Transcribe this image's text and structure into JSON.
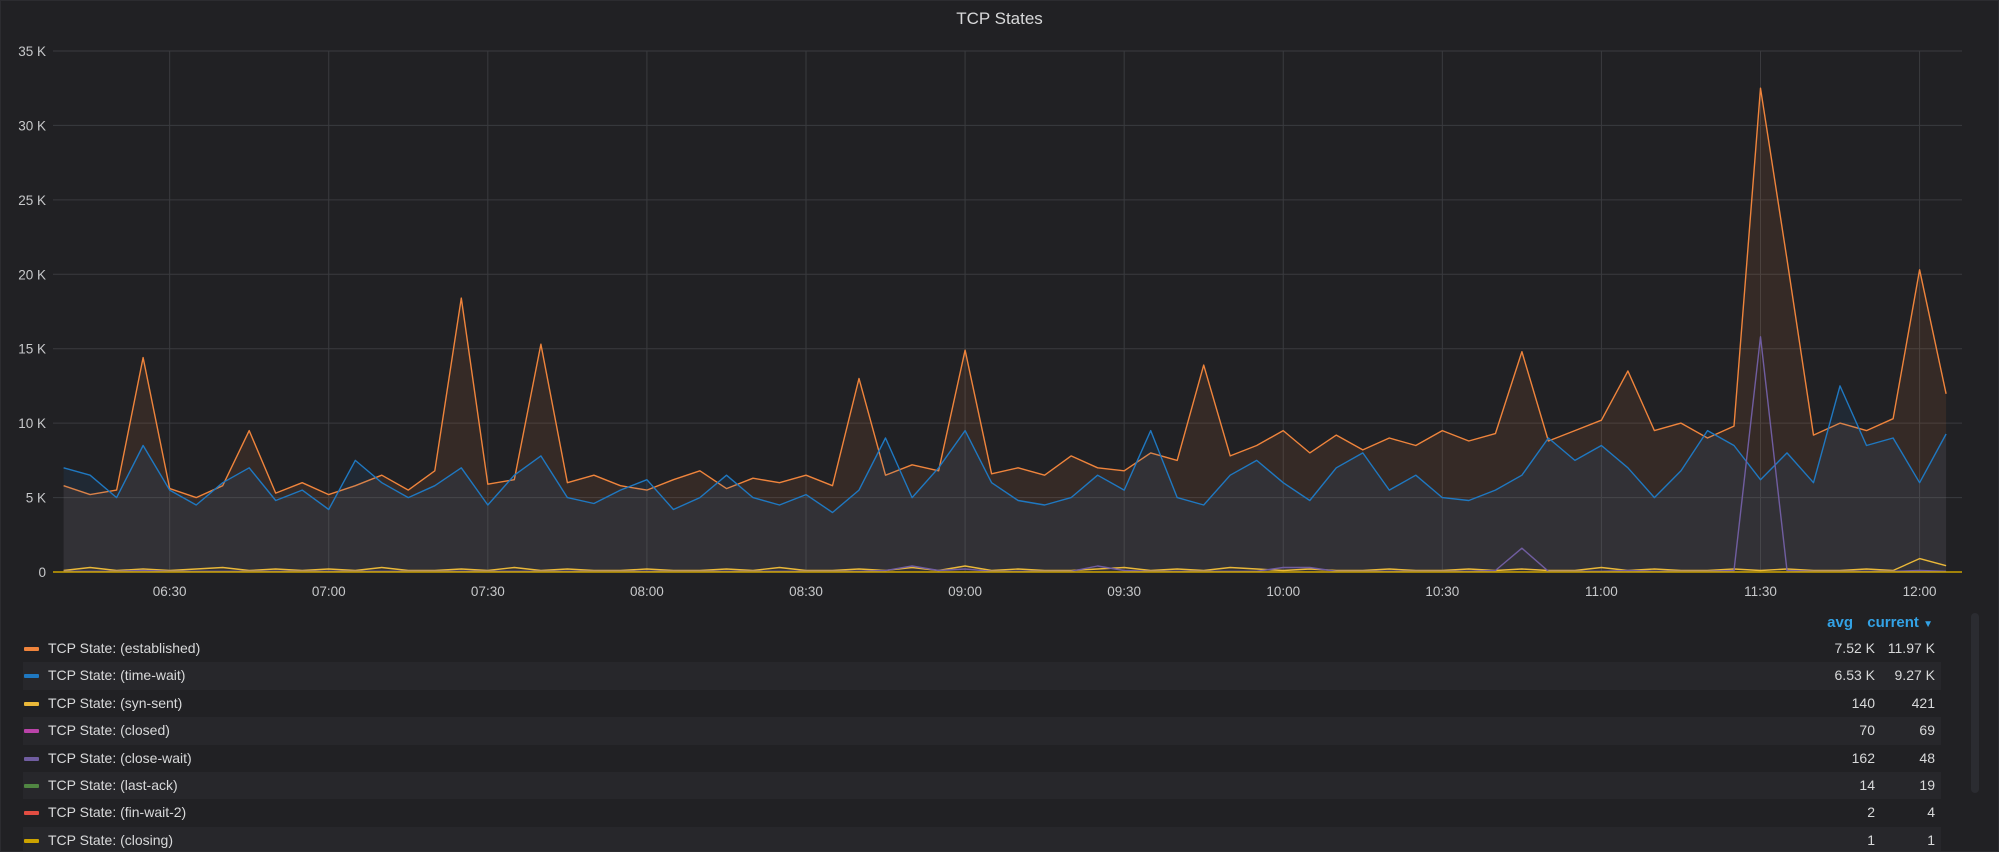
{
  "panel": {
    "title": "TCP States"
  },
  "legend": {
    "columns": {
      "avg": "avg",
      "current": "current",
      "sort_icon": "caret-down-icon"
    },
    "items": [
      {
        "label": "TCP State: (established)",
        "color": "#EF843C",
        "avg": "7.52 K",
        "current": "11.97 K"
      },
      {
        "label": "TCP State: (time-wait)",
        "color": "#1F78C1",
        "avg": "6.53 K",
        "current": "9.27 K"
      },
      {
        "label": "TCP State: (syn-sent)",
        "color": "#EAB839",
        "avg": "140",
        "current": "421"
      },
      {
        "label": "TCP State: (closed)",
        "color": "#BA43A9",
        "avg": "70",
        "current": "69"
      },
      {
        "label": "TCP State: (close-wait)",
        "color": "#705DA0",
        "avg": "162",
        "current": "48"
      },
      {
        "label": "TCP State: (last-ack)",
        "color": "#508642",
        "avg": "14",
        "current": "19"
      },
      {
        "label": "TCP State: (fin-wait-2)",
        "color": "#E24D42",
        "avg": "2",
        "current": "4"
      },
      {
        "label": "TCP State: (closing)",
        "color": "#CCA300",
        "avg": "1",
        "current": "1"
      }
    ]
  },
  "chart_data": {
    "type": "line",
    "title": "TCP States",
    "grid": true,
    "legend_placement": "bottom",
    "y_unit": "K",
    "ylim": [
      0,
      35
    ],
    "y_ticks": [
      "0",
      "5 K",
      "10 K",
      "15 K",
      "20 K",
      "25 K",
      "30 K",
      "35 K"
    ],
    "xlim": [
      "06:08",
      "12:08"
    ],
    "x_ticks": [
      "06:30",
      "07:00",
      "07:30",
      "08:00",
      "08:30",
      "09:00",
      "09:30",
      "10:00",
      "10:30",
      "11:00",
      "11:30",
      "12:00"
    ],
    "x": [
      "06:10",
      "06:15",
      "06:20",
      "06:25",
      "06:30",
      "06:35",
      "06:40",
      "06:45",
      "06:50",
      "06:55",
      "07:00",
      "07:05",
      "07:10",
      "07:15",
      "07:20",
      "07:25",
      "07:30",
      "07:35",
      "07:40",
      "07:45",
      "07:50",
      "07:55",
      "08:00",
      "08:05",
      "08:10",
      "08:15",
      "08:20",
      "08:25",
      "08:30",
      "08:35",
      "08:40",
      "08:45",
      "08:50",
      "08:55",
      "09:00",
      "09:05",
      "09:10",
      "09:15",
      "09:20",
      "09:25",
      "09:30",
      "09:35",
      "09:40",
      "09:45",
      "09:50",
      "09:55",
      "10:00",
      "10:05",
      "10:10",
      "10:15",
      "10:20",
      "10:25",
      "10:30",
      "10:35",
      "10:40",
      "10:45",
      "10:50",
      "10:55",
      "11:00",
      "11:05",
      "11:10",
      "11:15",
      "11:20",
      "11:25",
      "11:30",
      "11:35",
      "11:40",
      "11:45",
      "11:50",
      "11:55",
      "12:00",
      "12:05"
    ],
    "series": [
      {
        "name": "TCP State: (established)",
        "color": "#EF843C",
        "fill": true,
        "values": [
          5.8,
          5.2,
          5.5,
          14.4,
          5.6,
          5.0,
          5.8,
          9.5,
          5.3,
          6.0,
          5.2,
          5.8,
          6.5,
          5.5,
          6.8,
          18.4,
          5.9,
          6.2,
          15.3,
          6.0,
          6.5,
          5.8,
          5.5,
          6.2,
          6.8,
          5.6,
          6.3,
          6.0,
          6.5,
          5.8,
          13.0,
          6.5,
          7.2,
          6.8,
          14.9,
          6.6,
          7.0,
          6.5,
          7.8,
          7.0,
          6.8,
          8.0,
          7.5,
          13.9,
          7.8,
          8.5,
          9.5,
          8.0,
          9.2,
          8.2,
          9.0,
          8.5,
          9.5,
          8.8,
          9.3,
          14.8,
          8.8,
          9.5,
          10.2,
          13.5,
          9.5,
          10.0,
          9.0,
          9.8,
          32.5,
          21.0,
          9.2,
          10.0,
          9.5,
          10.3,
          20.3,
          11.97
        ]
      },
      {
        "name": "TCP State: (time-wait)",
        "color": "#1F78C1",
        "fill": true,
        "values": [
          7.0,
          6.5,
          5.0,
          8.5,
          5.5,
          4.5,
          6.0,
          7.0,
          4.8,
          5.5,
          4.2,
          7.5,
          6.0,
          5.0,
          5.8,
          7.0,
          4.5,
          6.5,
          7.8,
          5.0,
          4.6,
          5.5,
          6.2,
          4.2,
          5.0,
          6.5,
          5.0,
          4.5,
          5.2,
          4.0,
          5.5,
          9.0,
          5.0,
          7.0,
          9.5,
          6.0,
          4.8,
          4.5,
          5.0,
          6.5,
          5.5,
          9.5,
          5.0,
          4.5,
          6.5,
          7.5,
          6.0,
          4.8,
          7.0,
          8.0,
          5.5,
          6.5,
          5.0,
          4.8,
          5.5,
          6.5,
          9.0,
          7.5,
          8.5,
          7.0,
          5.0,
          6.8,
          9.5,
          8.5,
          6.2,
          8.0,
          6.0,
          12.5,
          8.5,
          9.0,
          6.0,
          9.27
        ]
      },
      {
        "name": "TCP State: (syn-sent)",
        "color": "#EAB839",
        "fill": false,
        "values": [
          0.1,
          0.3,
          0.1,
          0.2,
          0.1,
          0.2,
          0.3,
          0.1,
          0.2,
          0.1,
          0.2,
          0.1,
          0.3,
          0.1,
          0.1,
          0.2,
          0.1,
          0.3,
          0.1,
          0.2,
          0.1,
          0.1,
          0.2,
          0.1,
          0.1,
          0.2,
          0.1,
          0.3,
          0.1,
          0.1,
          0.2,
          0.1,
          0.3,
          0.1,
          0.4,
          0.1,
          0.2,
          0.1,
          0.1,
          0.2,
          0.3,
          0.1,
          0.2,
          0.1,
          0.3,
          0.2,
          0.1,
          0.2,
          0.1,
          0.1,
          0.2,
          0.1,
          0.1,
          0.2,
          0.1,
          0.2,
          0.1,
          0.1,
          0.3,
          0.1,
          0.2,
          0.1,
          0.1,
          0.2,
          0.1,
          0.2,
          0.1,
          0.1,
          0.2,
          0.1,
          0.9,
          0.42
        ]
      },
      {
        "name": "TCP State: (close-wait)",
        "color": "#705DA0",
        "fill": false,
        "values": [
          0.05,
          0.05,
          0.05,
          0.1,
          0.05,
          0.05,
          0.05,
          0.05,
          0.05,
          0.05,
          0.05,
          0.05,
          0.05,
          0.05,
          0.05,
          0.05,
          0.05,
          0.05,
          0.05,
          0.05,
          0.05,
          0.05,
          0.05,
          0.05,
          0.05,
          0.05,
          0.05,
          0.05,
          0.05,
          0.05,
          0.05,
          0.1,
          0.4,
          0.1,
          0.2,
          0.05,
          0.05,
          0.05,
          0.05,
          0.4,
          0.1,
          0.05,
          0.05,
          0.05,
          0.05,
          0.05,
          0.3,
          0.3,
          0.05,
          0.05,
          0.05,
          0.05,
          0.05,
          0.05,
          0.1,
          1.6,
          0.05,
          0.05,
          0.05,
          0.1,
          0.05,
          0.05,
          0.05,
          0.1,
          15.8,
          0.1,
          0.05,
          0.05,
          0.05,
          0.05,
          0.1,
          0.05
        ]
      }
    ]
  }
}
